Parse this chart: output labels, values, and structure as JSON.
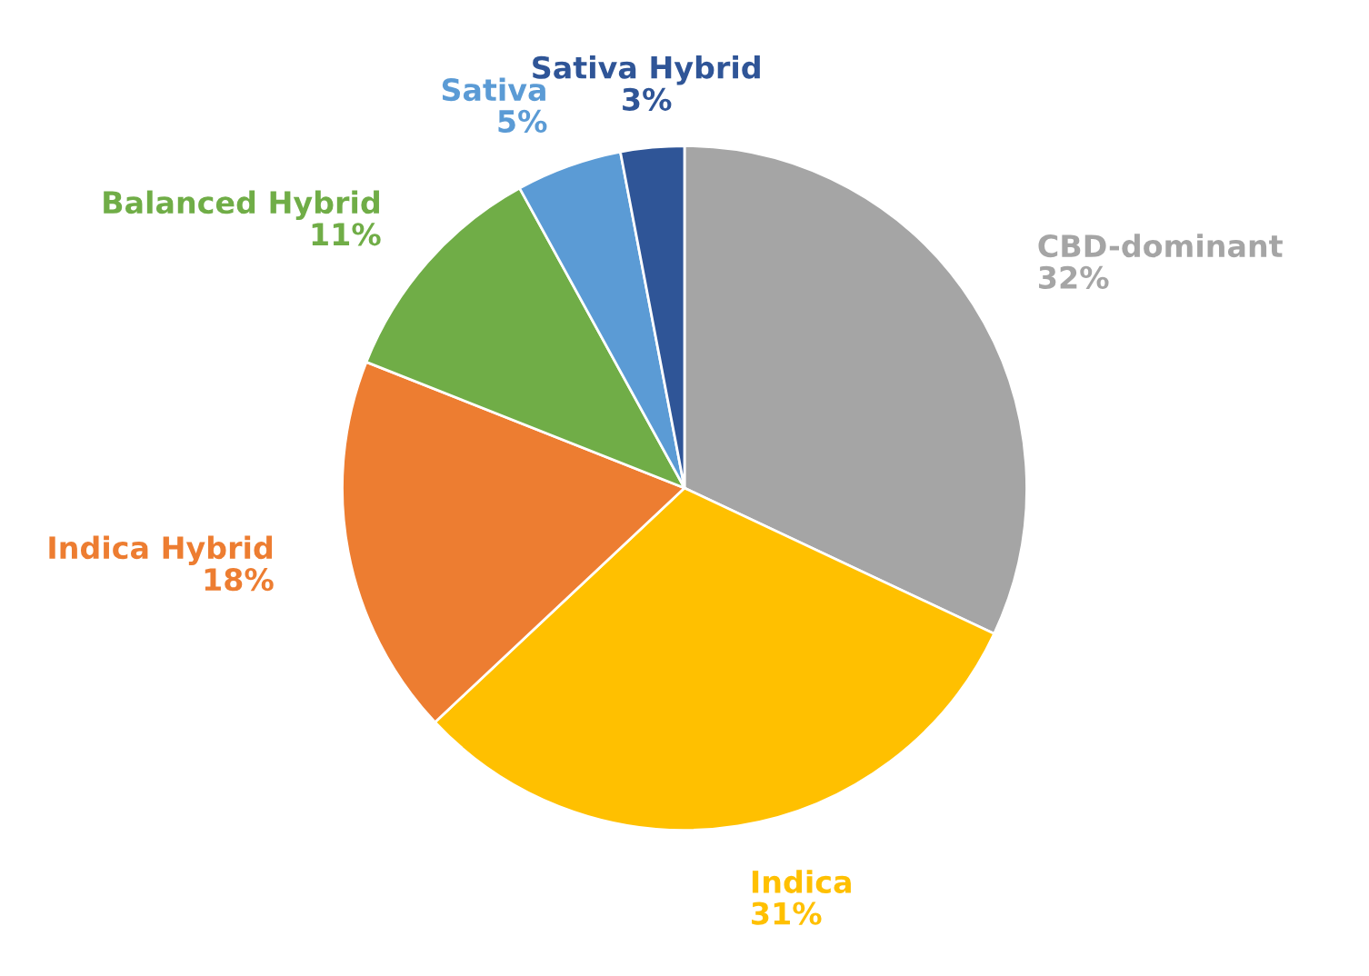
{
  "chart_data": {
    "type": "pie",
    "categories": [
      "CBD-dominant",
      "Indica",
      "Indica Hybrid",
      "Balanced Hybrid",
      "Sativa",
      "Sativa Hybrid"
    ],
    "values": [
      32,
      31,
      18,
      11,
      5,
      3
    ],
    "colors": [
      "#a5a5a5",
      "#ffc000",
      "#ed7d31",
      "#70ad47",
      "#5b9bd5",
      "#2f5597"
    ],
    "value_labels": [
      "32%",
      "31%",
      "18%",
      "11%",
      "5%",
      "3%"
    ],
    "legend": false
  }
}
